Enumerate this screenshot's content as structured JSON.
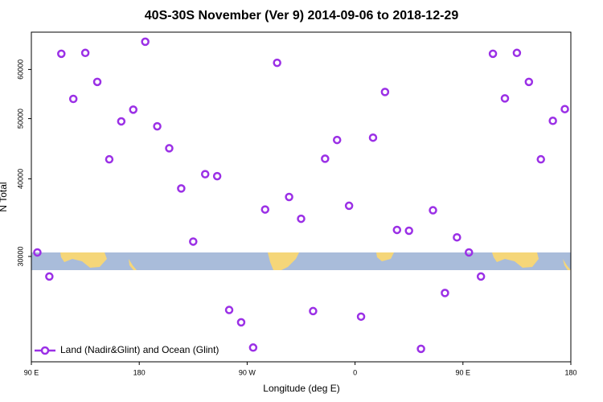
{
  "chart_data": {
    "type": "scatter",
    "title": "40S-30S November (Ver 9)   2014-09-06 to 2018-12-29",
    "x_label": "Longitude (deg E)",
    "y_label": "N Total",
    "xlim": [
      90,
      540
    ],
    "xticks": [
      {
        "value": 90,
        "label": "90 E"
      },
      180,
      {
        "value": 270,
        "label": "90 W"
      },
      {
        "value": 360,
        "label": "0"
      },
      {
        "value": 450,
        "label": "90 E"
      },
      {
        "value": 540,
        "label": "180"
      }
    ],
    "ylim": [
      20300,
      68900
    ],
    "ylog": true,
    "yticks": [
      30000,
      40000,
      50000,
      60000
    ],
    "legend": "bottomleft",
    "series": [
      {
        "name": "Land (Nadir&Glint) and Ocean (Glint)",
        "color": "#9b30e6",
        "x": [
          95,
          105,
          115,
          125,
          135,
          145,
          155,
          165,
          175,
          185,
          195,
          205,
          215,
          225,
          235,
          245,
          255,
          265,
          275,
          285,
          295,
          305,
          315,
          325,
          335,
          345,
          355,
          365,
          375,
          385,
          395,
          405,
          415,
          425,
          435,
          445,
          455,
          465,
          475,
          485,
          495,
          505,
          515,
          525,
          535
        ],
        "values": [
          30450,
          27850,
          63600,
          53800,
          63800,
          57300,
          43000,
          49500,
          51700,
          66500,
          48600,
          44800,
          38600,
          31700,
          40700,
          40400,
          24600,
          23500,
          21400,
          35700,
          61500,
          37400,
          34500,
          24500,
          43100,
          46200,
          36200,
          24000,
          46600,
          55200,
          33100,
          33000,
          21300,
          35600,
          26200,
          32200,
          30450,
          27850,
          63600,
          53900,
          63800,
          57300,
          43000,
          49600,
          51800
        ]
      }
    ]
  }
}
